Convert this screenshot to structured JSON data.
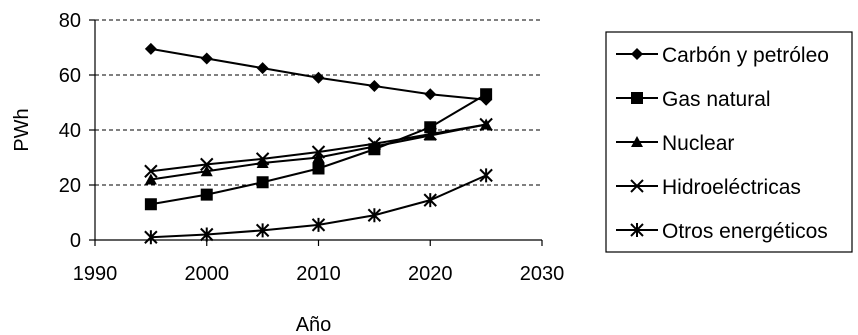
{
  "chart_data": {
    "type": "line",
    "title": "",
    "xlabel": "Año",
    "ylabel": "PWh",
    "xlim": [
      1990,
      2030
    ],
    "ylim": [
      0,
      80
    ],
    "xticks": [
      1990,
      2000,
      2010,
      2020,
      2030
    ],
    "yticks": [
      0,
      20,
      40,
      60,
      80
    ],
    "grid": "horizontal dashed",
    "legend_position": "right",
    "x": [
      1995,
      2000,
      2005,
      2010,
      2015,
      2020,
      2025
    ],
    "series": [
      {
        "name": "Carbón y petróleo",
        "marker": "diamond",
        "values": [
          69.5,
          66,
          62.5,
          59,
          56,
          53,
          51
        ]
      },
      {
        "name": "Gas natural",
        "marker": "square",
        "values": [
          13,
          16.5,
          21,
          26,
          33,
          41,
          53
        ]
      },
      {
        "name": "Nuclear",
        "marker": "triangle",
        "values": [
          22,
          25,
          28,
          30,
          34,
          38,
          42
        ]
      },
      {
        "name": "Hidroeléctricas",
        "marker": "x",
        "values": [
          25,
          27.5,
          29.5,
          32,
          35,
          38.5,
          42
        ]
      },
      {
        "name": "Otros energéticos",
        "marker": "star",
        "values": [
          1,
          2,
          3.5,
          5.5,
          9,
          14.5,
          23.5
        ]
      }
    ]
  }
}
